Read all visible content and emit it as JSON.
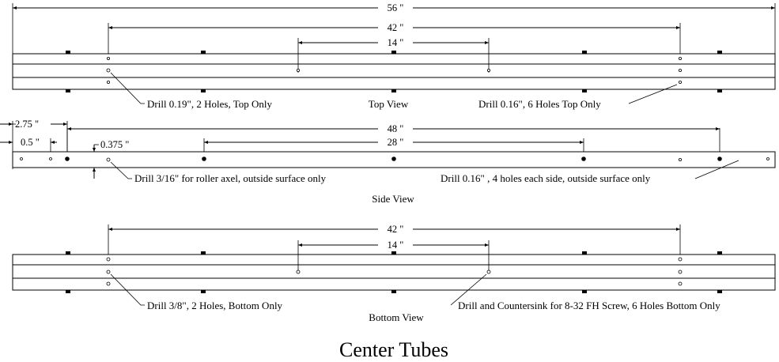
{
  "dimensions": {
    "top_overall": "56 \"",
    "top_span": "42 \"",
    "top_center": "14 \"",
    "side_2_75": "2.75 \"",
    "side_0_5": "0.5 \"",
    "side_0_375": "0.375 \"",
    "side_overall": "48 \"",
    "side_span": "28 \"",
    "bottom_span": "42 \"",
    "bottom_center": "14 \""
  },
  "notes": {
    "top_left": "Drill 0.19\", 2 Holes, Top Only",
    "top_right": "Drill 0.16\", 6 Holes Top Only",
    "side_left": "Drill 3/16\" for roller axel, outside surface only",
    "side_right": "Drill 0.16\" , 4 holes each side, outside surface only",
    "bottom_left": "Drill 3/8\", 2 Holes, Bottom Only",
    "bottom_right": "Drill and Countersink for 8-32 FH Screw, 6 Holes Bottom Only"
  },
  "views": {
    "top": "Top View",
    "side": "Side View",
    "bottom": "Bottom View"
  },
  "title": "Center Tubes"
}
